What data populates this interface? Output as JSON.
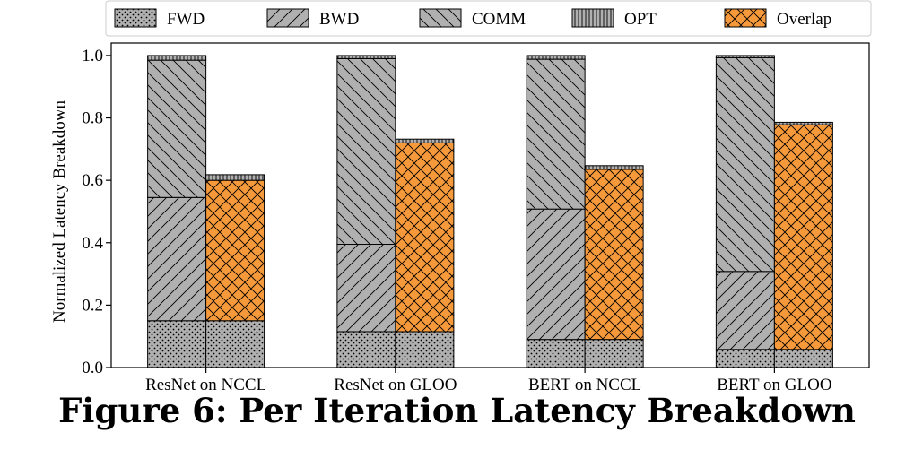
{
  "caption": "Figure 6: Per Iteration Latency Breakdown",
  "colors": {
    "gray": "#b0b0b0",
    "orange": "#f5993a",
    "edge": "#000000"
  },
  "chart_data": {
    "type": "bar",
    "stacked": true,
    "ylabel": "Normalized Latency Breakdown",
    "xlabel": "",
    "ylim": [
      0,
      1.04
    ],
    "yticks": [
      0.0,
      0.2,
      0.4,
      0.6,
      0.8,
      1.0
    ],
    "categories": [
      "ResNet on NCCL",
      "ResNet on GLOO",
      "BERT on NCCL",
      "BERT on GLOO"
    ],
    "legend": {
      "placement": "top",
      "entries": [
        {
          "name": "FWD",
          "hatch": "dots",
          "color": "gray"
        },
        {
          "name": "BWD",
          "hatch": "slash",
          "color": "gray"
        },
        {
          "name": "COMM",
          "hatch": "backslash",
          "color": "gray"
        },
        {
          "name": "OPT",
          "hatch": "vertical",
          "color": "gray"
        },
        {
          "name": "Overlap",
          "hatch": "cross",
          "color": "orange"
        }
      ]
    },
    "sequential_bars": [
      {
        "category": "ResNet on NCCL",
        "FWD": 0.15,
        "BWD": 0.395,
        "COMM": 0.44,
        "OPT": 0.015
      },
      {
        "category": "ResNet on GLOO",
        "FWD": 0.115,
        "BWD": 0.28,
        "COMM": 0.595,
        "OPT": 0.01
      },
      {
        "category": "BERT on NCCL",
        "FWD": 0.09,
        "BWD": 0.418,
        "COMM": 0.48,
        "OPT": 0.012
      },
      {
        "category": "BERT on GLOO",
        "FWD": 0.058,
        "BWD": 0.25,
        "COMM": 0.685,
        "OPT": 0.007
      }
    ],
    "overlap_bars": [
      {
        "category": "ResNet on NCCL",
        "FWD": 0.15,
        "Overlap": 0.45,
        "OPT": 0.018
      },
      {
        "category": "ResNet on GLOO",
        "FWD": 0.115,
        "Overlap": 0.605,
        "OPT": 0.012
      },
      {
        "category": "BERT on NCCL",
        "FWD": 0.09,
        "Overlap": 0.545,
        "OPT": 0.012
      },
      {
        "category": "BERT on GLOO",
        "FWD": 0.058,
        "Overlap": 0.72,
        "OPT": 0.008
      }
    ]
  }
}
